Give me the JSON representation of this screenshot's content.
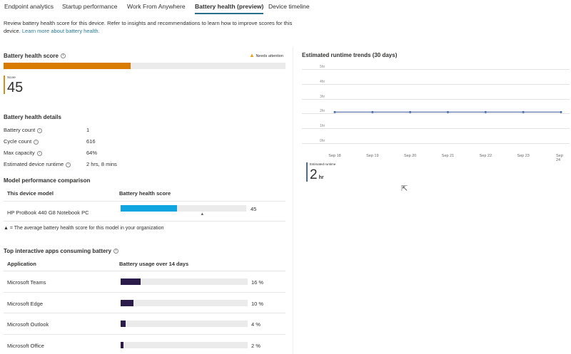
{
  "tabs": [
    "Endpoint analytics",
    "Startup performance",
    "Work From Anywhere",
    "Battery health (preview)",
    "Device timeline"
  ],
  "active_tab": 3,
  "description": "Review battery health score for this device. Refer to insights and recommendations to learn how to improve scores for this device.",
  "learn_more": "Learn more about battery health.",
  "score_section": {
    "title": "Battery health score",
    "status": "Needs attention",
    "score_label": "Score",
    "score": "45",
    "score_value": 45,
    "fill_color": "#d97b00",
    "status_color": "#e8a317"
  },
  "details": {
    "title": "Battery health details",
    "rows": [
      {
        "label": "Battery count",
        "value": "1"
      },
      {
        "label": "Cycle count",
        "value": "616"
      },
      {
        "label": "Max capacity",
        "value": "64%"
      },
      {
        "label": "Estimated device runtime",
        "value": "2 hrs, 8 mins"
      }
    ]
  },
  "model": {
    "title": "Model performance comparison",
    "col1": "This device model",
    "col2": "Battery health score",
    "device": "HP ProBook 440 G8 Notebook PC",
    "score": "45",
    "score_value": 45,
    "average_value": 65,
    "bar_color": "#0ea5e0",
    "note": "▲ = The average battery health score for this model in your organization"
  },
  "apps": {
    "title": "Top interactive apps consuming battery",
    "col1": "Application",
    "col2": "Battery usage over 14 days",
    "bar_color": "#2a1b4a",
    "rows": [
      {
        "name": "Microsoft Teams",
        "label": "16 %",
        "value": 16
      },
      {
        "name": "Microsoft Edge",
        "label": "10 %",
        "value": 10
      },
      {
        "name": "Microsoft Outlook",
        "label": "4 %",
        "value": 4
      },
      {
        "name": "Microsoft Office",
        "label": "2 %",
        "value": 2
      }
    ]
  },
  "chart_data": {
    "type": "line",
    "title": "Estimated runtime trends (30 days)",
    "x": [
      "Sep 18",
      "Sep 19",
      "Sep 20",
      "Sep 21",
      "Sep 22",
      "Sep 23",
      "Sep 24"
    ],
    "yticks": [
      "0hr",
      "1hr",
      "2hr",
      "3hr",
      "4hr",
      "5hr"
    ],
    "ylim": [
      0,
      5
    ],
    "grid": true,
    "line_color": "#4a6aa5",
    "series": [
      {
        "values": [
          2.1,
          2.1,
          2.1,
          2.1,
          2.1,
          2.1,
          2.1
        ]
      }
    ]
  },
  "runtime_summary": {
    "label": "Estimated runtime",
    "value": "2",
    "unit": "hr"
  }
}
